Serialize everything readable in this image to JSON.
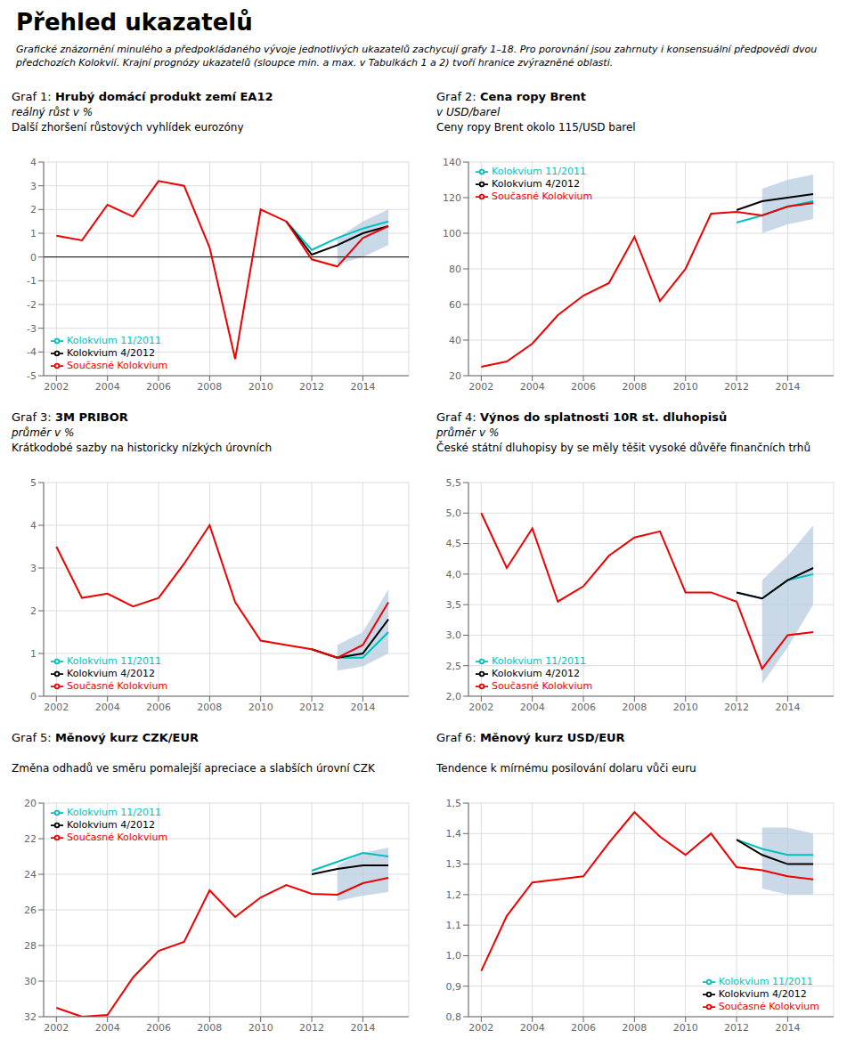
{
  "title": "Přehled ukazatelů",
  "subtitle": "Grafické znázornění minulého a předpokládaného vývoje jednotlivých ukazatelů zachycují grafy 1–18. Pro porovnání jsou zahrnuty i konsensuální předpovědi dvou předchozích Kolokvií. Krajní prognózy ukazatelů (sloupce min. a max. v Tabulkách 1 a 2) tvoří hranice zvýrazněné oblasti.",
  "chart_data": [
    {
      "type": "line",
      "title": "Graf 1: Hrubý domácí produkt zemí EA12",
      "subtitle": "reálný růst v %",
      "annotations": [
        "Další zhoršení růstových vyhlídek eurozóny"
      ],
      "x": [
        2002,
        2003,
        2004,
        2005,
        2006,
        2007,
        2008,
        2009,
        2010,
        2011,
        2012,
        2013,
        2014,
        2015
      ],
      "series": [
        {
          "name": "Kolokvium 11/2011",
          "color": "#00BFBF",
          "values": [
            null,
            null,
            null,
            null,
            null,
            null,
            null,
            null,
            null,
            1.5,
            0.3,
            0.8,
            1.2,
            1.5
          ]
        },
        {
          "name": "Kolokvium 4/2012",
          "color": "#000000",
          "values": [
            null,
            null,
            null,
            null,
            null,
            null,
            null,
            null,
            null,
            1.5,
            0.1,
            0.5,
            1.0,
            1.3
          ]
        },
        {
          "name": "Současné Kolokvium",
          "color": "#EE0000",
          "values": [
            0.9,
            0.7,
            2.2,
            1.7,
            3.2,
            3.0,
            0.4,
            -4.3,
            2.0,
            1.5,
            -0.1,
            -0.4,
            0.8,
            1.3
          ]
        }
      ],
      "band": {
        "color": "#B8CCE0",
        "lower": [
          null,
          null,
          null,
          null,
          null,
          null,
          null,
          null,
          null,
          null,
          null,
          -0.3,
          0.0,
          0.5
        ],
        "upper": [
          null,
          null,
          null,
          null,
          null,
          null,
          null,
          null,
          null,
          null,
          null,
          0.8,
          1.5,
          2.0
        ]
      },
      "hlines": [
        0
      ],
      "xlim": [
        2001.5,
        2015.8
      ],
      "xticks": [
        2002,
        2004,
        2006,
        2008,
        2010,
        2012,
        2014
      ],
      "ylim": [
        -5,
        4
      ],
      "yticks": [
        -5,
        -4,
        -3,
        -2,
        -1,
        0,
        1,
        2,
        3,
        4
      ],
      "grid": true,
      "legend": "lower left"
    },
    {
      "type": "line",
      "title": "Graf 2: Cena ropy Brent",
      "subtitle": "v USD/barel",
      "annotations": [
        "Ceny ropy Brent okolo 115/USD barel"
      ],
      "x": [
        2002,
        2003,
        2004,
        2005,
        2006,
        2007,
        2008,
        2009,
        2010,
        2011,
        2012,
        2013,
        2014,
        2015
      ],
      "series": [
        {
          "name": "Kolokvium 11/2011",
          "color": "#00BFBF",
          "values": [
            null,
            null,
            null,
            null,
            null,
            null,
            null,
            null,
            null,
            null,
            106,
            110,
            115,
            118
          ]
        },
        {
          "name": "Kolokvium 4/2012",
          "color": "#000000",
          "values": [
            null,
            null,
            null,
            null,
            null,
            null,
            null,
            null,
            null,
            null,
            113,
            118,
            120,
            122
          ]
        },
        {
          "name": "Současné Kolokvium",
          "color": "#EE0000",
          "values": [
            25,
            28,
            38,
            54,
            65,
            72,
            98,
            62,
            80,
            111,
            112,
            110,
            115,
            117
          ]
        }
      ],
      "band": {
        "color": "#B8CCE0",
        "lower": [
          null,
          null,
          null,
          null,
          null,
          null,
          null,
          null,
          null,
          null,
          null,
          100,
          105,
          108
        ],
        "upper": [
          null,
          null,
          null,
          null,
          null,
          null,
          null,
          null,
          null,
          null,
          null,
          125,
          130,
          133
        ]
      },
      "xlim": [
        2001.5,
        2015.8
      ],
      "xticks": [
        2002,
        2004,
        2006,
        2008,
        2010,
        2012,
        2014
      ],
      "ylim": [
        20,
        140
      ],
      "yticks": [
        20,
        40,
        60,
        80,
        100,
        120,
        140
      ],
      "grid": true,
      "legend": "upper left"
    },
    {
      "type": "line",
      "title": "Graf 3: 3M PRIBOR",
      "subtitle": "průměr v %",
      "annotations": [
        "Krátkodobé sazby na historicky nízkých úrovních"
      ],
      "x": [
        2002,
        2003,
        2004,
        2005,
        2006,
        2007,
        2008,
        2009,
        2010,
        2011,
        2012,
        2013,
        2014,
        2015
      ],
      "series": [
        {
          "name": "Kolokvium 11/2011",
          "color": "#00BFBF",
          "values": [
            null,
            null,
            null,
            null,
            null,
            null,
            null,
            null,
            null,
            null,
            1.1,
            0.9,
            0.9,
            1.5
          ]
        },
        {
          "name": "Kolokvium 4/2012",
          "color": "#000000",
          "values": [
            null,
            null,
            null,
            null,
            null,
            null,
            null,
            null,
            null,
            null,
            1.1,
            0.9,
            1.0,
            1.8
          ]
        },
        {
          "name": "Současné Kolokvium",
          "color": "#EE0000",
          "values": [
            3.5,
            2.3,
            2.4,
            2.1,
            2.3,
            3.1,
            4.0,
            2.2,
            1.3,
            1.2,
            1.1,
            0.9,
            1.2,
            2.2
          ]
        }
      ],
      "band": {
        "color": "#B8CCE0",
        "lower": [
          null,
          null,
          null,
          null,
          null,
          null,
          null,
          null,
          null,
          null,
          null,
          0.6,
          0.7,
          1.0
        ],
        "upper": [
          null,
          null,
          null,
          null,
          null,
          null,
          null,
          null,
          null,
          null,
          null,
          1.2,
          1.5,
          2.5
        ]
      },
      "xlim": [
        2001.5,
        2015.8
      ],
      "xticks": [
        2002,
        2004,
        2006,
        2008,
        2010,
        2012,
        2014
      ],
      "ylim": [
        0,
        5
      ],
      "yticks": [
        0,
        1,
        2,
        3,
        4,
        5
      ],
      "grid": true,
      "legend": "lower left"
    },
    {
      "type": "line",
      "title": "Graf 4: Výnos do splatnosti 10R st. dluhopisů",
      "subtitle": "průměr v %",
      "annotations": [
        "České státní dluhopisy by se měly těšit vysoké důvěře finančních trhů"
      ],
      "x": [
        2002,
        2003,
        2004,
        2005,
        2006,
        2007,
        2008,
        2009,
        2010,
        2011,
        2012,
        2013,
        2014,
        2015
      ],
      "series": [
        {
          "name": "Kolokvium 11/2011",
          "color": "#00BFBF",
          "values": [
            null,
            null,
            null,
            null,
            null,
            null,
            null,
            null,
            null,
            null,
            3.7,
            3.6,
            3.9,
            4.0
          ]
        },
        {
          "name": "Kolokvium 4/2012",
          "color": "#000000",
          "values": [
            null,
            null,
            null,
            null,
            null,
            null,
            null,
            null,
            null,
            null,
            3.7,
            3.6,
            3.9,
            4.1
          ]
        },
        {
          "name": "Současné Kolokvium",
          "color": "#EE0000",
          "values": [
            5.0,
            4.1,
            4.75,
            3.55,
            3.8,
            4.3,
            4.6,
            4.7,
            3.7,
            3.7,
            3.55,
            2.45,
            3.0,
            3.05
          ]
        }
      ],
      "band": {
        "color": "#B8CCE0",
        "lower": [
          null,
          null,
          null,
          null,
          null,
          null,
          null,
          null,
          null,
          null,
          null,
          2.2,
          2.8,
          3.5
        ],
        "upper": [
          null,
          null,
          null,
          null,
          null,
          null,
          null,
          null,
          null,
          null,
          null,
          3.9,
          4.3,
          4.8
        ]
      },
      "xlim": [
        2001.5,
        2015.8
      ],
      "xticks": [
        2002,
        2004,
        2006,
        2008,
        2010,
        2012,
        2014
      ],
      "ylim": [
        2.0,
        5.5
      ],
      "yticks": [
        {
          "value": 2.0,
          "label": "2,0"
        },
        {
          "value": 2.5,
          "label": "2,5"
        },
        {
          "value": 3.0,
          "label": "3,0"
        },
        {
          "value": 3.5,
          "label": "3,5"
        },
        {
          "value": 4.0,
          "label": "4,0"
        },
        {
          "value": 4.5,
          "label": "4,5"
        },
        {
          "value": 5.0,
          "label": "5,0"
        },
        {
          "value": 5.5,
          "label": "5,5"
        }
      ],
      "grid": true,
      "legend": "lower left"
    },
    {
      "type": "line",
      "title": "Graf 5: Měnový kurz CZK/EUR",
      "annotations": [
        "Změna odhadů ve směru pomalejší apreciace a slabších úrovní CZK"
      ],
      "x": [
        2002,
        2003,
        2004,
        2005,
        2006,
        2007,
        2008,
        2009,
        2010,
        2011,
        2012,
        2013,
        2014,
        2015
      ],
      "series": [
        {
          "name": "Kolokvium 11/2011",
          "color": "#00BFBF",
          "values": [
            null,
            null,
            null,
            null,
            null,
            null,
            null,
            null,
            null,
            null,
            23.8,
            23.3,
            22.8,
            23.0
          ]
        },
        {
          "name": "Kolokvium 4/2012",
          "color": "#000000",
          "values": [
            null,
            null,
            null,
            null,
            null,
            null,
            null,
            null,
            null,
            null,
            24.0,
            23.7,
            23.5,
            23.5
          ]
        },
        {
          "name": "Současné Kolokvium",
          "color": "#EE0000",
          "values": [
            31.5,
            32.0,
            31.9,
            29.8,
            28.3,
            27.8,
            24.9,
            26.4,
            25.3,
            24.6,
            25.1,
            25.15,
            24.5,
            24.2
          ]
        }
      ],
      "band": {
        "color": "#B8CCE0",
        "lower": [
          null,
          null,
          null,
          null,
          null,
          null,
          null,
          null,
          null,
          null,
          null,
          23.5,
          22.8,
          22.5
        ],
        "upper": [
          null,
          null,
          null,
          null,
          null,
          null,
          null,
          null,
          null,
          null,
          null,
          25.5,
          25.2,
          25.0
        ]
      },
      "xlim": [
        2001.5,
        2015.8
      ],
      "xticks": [
        2002,
        2004,
        2006,
        2008,
        2010,
        2012,
        2014
      ],
      "ylim": [
        32,
        20
      ],
      "yticks": [
        20,
        22,
        24,
        26,
        28,
        30,
        32
      ],
      "grid": true,
      "legend": "upper left"
    },
    {
      "type": "line",
      "title": "Graf 6: Měnový kurz USD/EUR",
      "annotations": [
        "Tendence k mírnému posilování dolaru vůči euru"
      ],
      "x": [
        2002,
        2003,
        2004,
        2005,
        2006,
        2007,
        2008,
        2009,
        2010,
        2011,
        2012,
        2013,
        2014,
        2015
      ],
      "series": [
        {
          "name": "Kolokvium 11/2011",
          "color": "#00BFBF",
          "values": [
            null,
            null,
            null,
            null,
            null,
            null,
            null,
            null,
            null,
            null,
            1.38,
            1.35,
            1.33,
            1.33
          ]
        },
        {
          "name": "Kolokvium 4/2012",
          "color": "#000000",
          "values": [
            null,
            null,
            null,
            null,
            null,
            null,
            null,
            null,
            null,
            null,
            1.38,
            1.33,
            1.3,
            1.3
          ]
        },
        {
          "name": "Současné Kolokvium",
          "color": "#EE0000",
          "values": [
            0.95,
            1.13,
            1.24,
            1.25,
            1.26,
            1.37,
            1.47,
            1.39,
            1.33,
            1.4,
            1.29,
            1.28,
            1.26,
            1.25
          ]
        }
      ],
      "band": {
        "color": "#B8CCE0",
        "lower": [
          null,
          null,
          null,
          null,
          null,
          null,
          null,
          null,
          null,
          null,
          null,
          1.22,
          1.2,
          1.2
        ],
        "upper": [
          null,
          null,
          null,
          null,
          null,
          null,
          null,
          null,
          null,
          null,
          null,
          1.42,
          1.42,
          1.4
        ]
      },
      "xlim": [
        2001.5,
        2015.8
      ],
      "xticks": [
        2002,
        2004,
        2006,
        2008,
        2010,
        2012,
        2014
      ],
      "ylim": [
        0.8,
        1.5
      ],
      "yticks": [
        {
          "value": 0.8,
          "label": "0,8"
        },
        {
          "value": 0.9,
          "label": "0,9"
        },
        {
          "value": 1.0,
          "label": "1,0"
        },
        {
          "value": 1.1,
          "label": "1,1"
        },
        {
          "value": 1.2,
          "label": "1,2"
        },
        {
          "value": 1.3,
          "label": "1,3"
        },
        {
          "value": 1.4,
          "label": "1,4"
        },
        {
          "value": 1.5,
          "label": "1,5"
        }
      ],
      "grid": true,
      "legend": "lower right"
    }
  ]
}
